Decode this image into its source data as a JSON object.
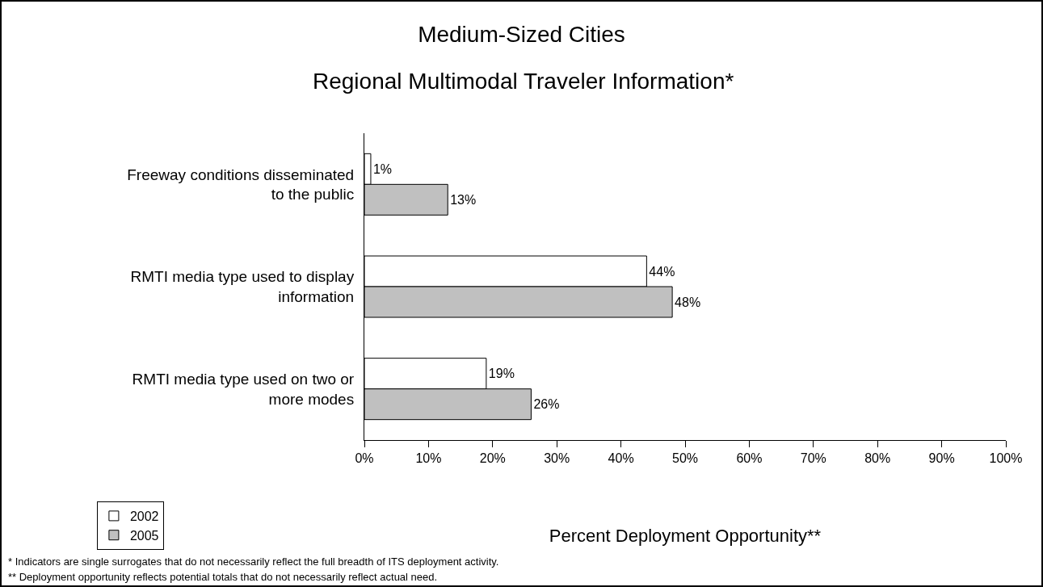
{
  "chart_data": {
    "type": "bar",
    "orientation": "horizontal",
    "title": "Medium-Sized Cities",
    "subtitle": "Regional Multimodal Traveler Information*",
    "xlabel": "Percent Deployment Opportunity**",
    "categories": [
      "Freeway conditions disseminated to the public",
      "RMTI media type used to display information",
      "RMTI media type used on two or more modes"
    ],
    "series": [
      {
        "name": "2002",
        "color": "#ffffff",
        "values": [
          1,
          44,
          19
        ],
        "value_labels": [
          "1%",
          "44%",
          "19%"
        ]
      },
      {
        "name": "2005",
        "color": "#c0c0c0",
        "values": [
          13,
          48,
          26
        ],
        "value_labels": [
          "13%",
          "48%",
          "26%"
        ]
      }
    ],
    "xlim": [
      0,
      100
    ],
    "xticks": [
      {
        "value": 0,
        "label": "0%"
      },
      {
        "value": 10,
        "label": "10%"
      },
      {
        "value": 20,
        "label": "20%"
      },
      {
        "value": 30,
        "label": "30%"
      },
      {
        "value": 40,
        "label": "40%"
      },
      {
        "value": 50,
        "label": "50%"
      },
      {
        "value": 60,
        "label": "60%"
      },
      {
        "value": 70,
        "label": "70%"
      },
      {
        "value": 80,
        "label": "80%"
      },
      {
        "value": 90,
        "label": "90%"
      },
      {
        "value": 100,
        "label": "100%"
      }
    ],
    "grid": false,
    "legend": "bottom left",
    "annotations": [
      "* Indicators are single surrogates that do not necessarily reflect the full breadth of ITS deployment activity.",
      "** Deployment opportunity reflects potential totals that do not necessarily reflect actual need."
    ]
  }
}
